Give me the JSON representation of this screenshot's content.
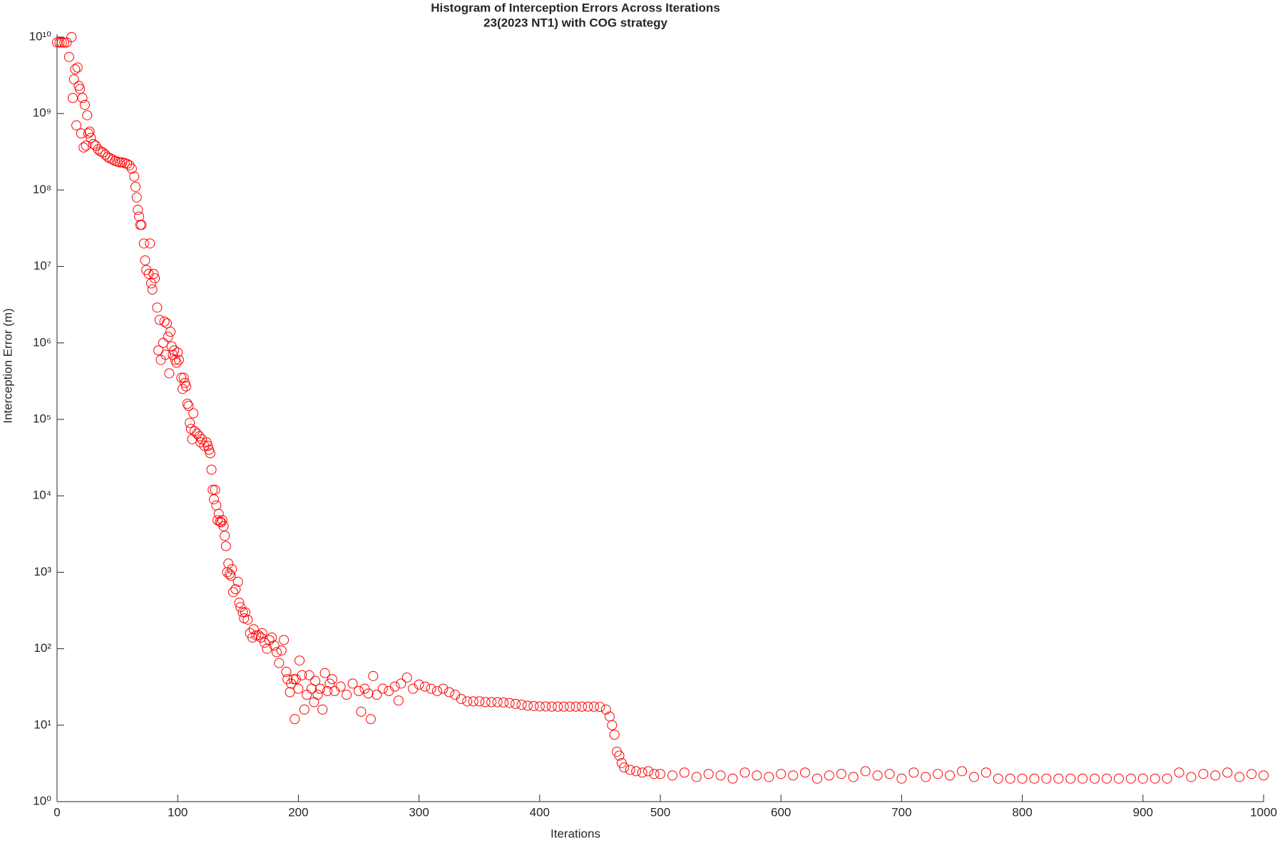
{
  "chart_data": {
    "type": "scatter",
    "title": "Histogram of Interception Errors Across Iterations",
    "subtitle": "23(2023 NT1) with COG strategy",
    "x_label": "Iterations",
    "y_label": "Interception Error (m)",
    "color": "#ff0000",
    "y_scale": "log",
    "xlim": [
      0,
      1000
    ],
    "xticks": [
      0,
      100,
      200,
      300,
      400,
      500,
      600,
      700,
      800,
      900,
      1000
    ],
    "ylim": [
      1,
      10000000000.0
    ],
    "yticks": [
      {
        "value": 1,
        "label": "10⁰"
      },
      {
        "value": 10,
        "label": "10¹"
      },
      {
        "value": 100,
        "label": "10²"
      },
      {
        "value": 1000,
        "label": "10³"
      },
      {
        "value": 10000,
        "label": "10⁴"
      },
      {
        "value": 100000,
        "label": "10⁵"
      },
      {
        "value": 1000000,
        "label": "10⁶"
      },
      {
        "value": 10000000,
        "label": "10⁷"
      },
      {
        "value": 100000000,
        "label": "10⁸"
      },
      {
        "value": 1000000000,
        "label": "10⁹"
      },
      {
        "value": 10000000000,
        "label": "10¹⁰"
      }
    ],
    "x": [
      0,
      2,
      4,
      6,
      8,
      10,
      12,
      13,
      14,
      15,
      16,
      17,
      18,
      19,
      20,
      21,
      22,
      23,
      24,
      25,
      26,
      27,
      28,
      30,
      32,
      34,
      36,
      38,
      40,
      42,
      44,
      46,
      48,
      50,
      52,
      54,
      56,
      58,
      60,
      62,
      64,
      65,
      66,
      67,
      68,
      69,
      70,
      72,
      73,
      74,
      76,
      77,
      78,
      79,
      80,
      81,
      83,
      84,
      85,
      86,
      88,
      89,
      90,
      91,
      92,
      93,
      94,
      95,
      96,
      97,
      98,
      99,
      100,
      101,
      103,
      104,
      105,
      106,
      107,
      108,
      109,
      110,
      111,
      112,
      113,
      114,
      116,
      118,
      119,
      120,
      122,
      124,
      125,
      126,
      127,
      128,
      129,
      130,
      131,
      132,
      133,
      134,
      135,
      136,
      137,
      138,
      139,
      140,
      141,
      142,
      143,
      144,
      145,
      146,
      148,
      150,
      151,
      152,
      154,
      155,
      156,
      158,
      160,
      162,
      163,
      165,
      167,
      169,
      170,
      172,
      174,
      176,
      178,
      180,
      182,
      184,
      186,
      188,
      190,
      191,
      193,
      194,
      196,
      197,
      198,
      200,
      201,
      203,
      205,
      207,
      209,
      211,
      213,
      214,
      216,
      218,
      220,
      222,
      224,
      226,
      228,
      230,
      235,
      240,
      245,
      250,
      252,
      255,
      258,
      260,
      262,
      265,
      270,
      275,
      280,
      283,
      285,
      290,
      295,
      300,
      305,
      310,
      315,
      320,
      325,
      330,
      335,
      340,
      345,
      350,
      355,
      360,
      365,
      370,
      375,
      380,
      385,
      390,
      395,
      400,
      405,
      410,
      415,
      420,
      425,
      430,
      435,
      440,
      445,
      450,
      455,
      458,
      460,
      462,
      464,
      466,
      468,
      470,
      475,
      480,
      485,
      490,
      495,
      500,
      510,
      520,
      530,
      540,
      550,
      560,
      570,
      580,
      590,
      600,
      610,
      620,
      630,
      640,
      650,
      660,
      670,
      680,
      690,
      700,
      710,
      720,
      730,
      740,
      750,
      760,
      770,
      780,
      790,
      800,
      810,
      820,
      830,
      840,
      850,
      860,
      870,
      880,
      890,
      900,
      910,
      920,
      930,
      940,
      950,
      960,
      970,
      980,
      990,
      1000
    ],
    "values": [
      8500000000.0,
      8500000000.0,
      8500000000.0,
      8500000000.0,
      8500000000.0,
      5500000000.0,
      10000000000.0,
      1600000000.0,
      2800000000.0,
      3800000000.0,
      700000000.0,
      4000000000.0,
      2300000000.0,
      2100000000.0,
      550000000.0,
      1600000000.0,
      360000000.0,
      1300000000.0,
      380000000.0,
      950000000.0,
      550000000.0,
      580000000.0,
      480000000.0,
      400000000.0,
      380000000.0,
      340000000.0,
      320000000.0,
      310000000.0,
      290000000.0,
      270000000.0,
      260000000.0,
      250000000.0,
      240000000.0,
      235000000.0,
      230000000.0,
      230000000.0,
      225000000.0,
      220000000.0,
      210000000.0,
      190000000.0,
      150000000.0,
      110000000.0,
      80000000.0,
      55000000.0,
      45000000.0,
      35000000.0,
      35000000.0,
      20000000.0,
      12000000.0,
      9000000.0,
      8000000.0,
      20000000.0,
      6000000.0,
      5000000.0,
      8000000.0,
      7000000.0,
      2900000.0,
      800000.0,
      2000000.0,
      600000.0,
      1000000.0,
      1900000.0,
      700000.0,
      1800000.0,
      1200000.0,
      400000.0,
      1400000.0,
      900000.0,
      700000.0,
      800000.0,
      600000.0,
      550000.0,
      750000.0,
      600000.0,
      350000.0,
      250000.0,
      350000.0,
      300000.0,
      270000.0,
      160000.0,
      150000.0,
      90000.0,
      75000.0,
      55000.0,
      120000.0,
      70000.0,
      65000.0,
      60000.0,
      50000.0,
      55000.0,
      45000.0,
      50000.0,
      45000.0,
      40000.0,
      36000.0,
      22000.0,
      12000.0,
      9000.0,
      12000.0,
      7500.0,
      4800.0,
      5800.0,
      4600.0,
      4500.0,
      4800.0,
      4000.0,
      3000.0,
      2200.0,
      1000.0,
      1300.0,
      950,
      900,
      1100,
      550,
      600,
      750,
      400,
      350,
      300,
      250,
      300,
      240,
      160,
      140,
      180,
      150,
      150,
      140,
      160,
      120,
      100,
      130,
      140,
      110,
      90,
      65,
      95,
      130,
      50,
      40,
      27,
      35,
      40,
      12,
      40,
      30,
      70,
      45,
      16,
      25,
      45,
      30,
      20,
      38,
      25,
      30,
      16,
      48,
      28,
      35,
      40,
      28,
      32,
      25,
      35,
      28,
      15,
      30,
      26,
      12,
      44,
      25,
      30,
      28,
      32,
      21,
      35,
      42,
      30,
      34,
      32,
      30,
      28,
      30,
      27,
      25,
      22,
      20.5,
      20.5,
      20.5,
      20,
      20,
      20,
      19.8,
      19.5,
      19,
      18.5,
      18,
      17.8,
      17.6,
      17.6,
      17.5,
      17.5,
      17.5,
      17.5,
      17.5,
      17.5,
      17.5,
      17.5,
      17.3,
      16,
      13,
      10,
      7.5,
      4.5,
      4,
      3.2,
      2.8,
      2.6,
      2.5,
      2.4,
      2.5,
      2.3,
      2.3,
      2.2,
      2.4,
      2.1,
      2.3,
      2.2,
      2.0,
      2.4,
      2.2,
      2.1,
      2.3,
      2.2,
      2.4,
      2.0,
      2.2,
      2.3,
      2.1,
      2.5,
      2.2,
      2.3,
      2.0,
      2.4,
      2.1,
      2.3,
      2.2,
      2.5,
      2.1,
      2.4,
      2.0,
      2.0,
      2.0,
      2.0,
      2.0,
      2.0,
      2.0,
      2.0,
      2.0,
      2.0,
      2.0,
      2.0,
      2.0,
      2.0,
      2.0,
      2.4,
      2.1,
      2.3,
      2.2,
      2.4,
      2.1,
      2.3,
      2.2
    ]
  }
}
